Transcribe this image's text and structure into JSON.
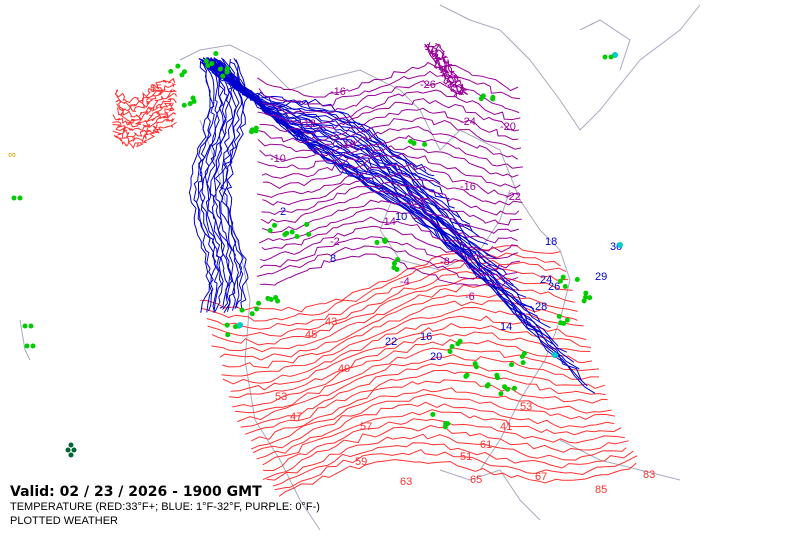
{
  "map": {
    "valid": "Valid: 02 / 23 / 2026  -  1900 GMT",
    "legend_line": "TEMPERATURE (RED:33°F+; BLUE: 1°F-32°F, PURPLE: 0°F-)",
    "layer_line": "PLOTTED WEATHER",
    "colors": {
      "red": "#ff3030",
      "blue": "#0000cc",
      "purple": "#990099",
      "coast": "#a8a8c0",
      "weather": "#00cc00",
      "cyan": "#00cccc"
    },
    "red_labels": [
      "55",
      "43",
      "45",
      "49",
      "53",
      "57",
      "59",
      "63",
      "65",
      "51",
      "41",
      "47",
      "61",
      "85",
      "83",
      "67",
      "53"
    ],
    "blue_labels": [
      "2",
      "8",
      "10",
      "14",
      "16",
      "20",
      "22",
      "24",
      "28",
      "30",
      "29",
      "26",
      "18"
    ],
    "purple_labels": [
      "-16",
      "-18",
      "-24",
      "-26",
      "-22",
      "-14",
      "-10",
      "-12",
      "-4",
      "-2",
      "-6",
      "-8",
      "-20",
      "-24",
      "-16"
    ]
  }
}
